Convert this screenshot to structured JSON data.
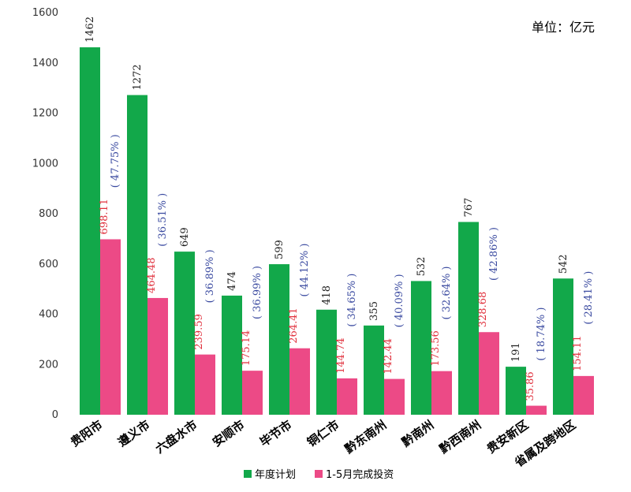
{
  "chart_data": {
    "type": "bar",
    "unit_label": "单位：亿元",
    "categories": [
      "贵阳市",
      "遵义市",
      "六盘水市",
      "安顺市",
      "毕节市",
      "铜仁市",
      "黔东南州",
      "黔南州",
      "黔西南州",
      "贵安新区",
      "省属及跨地区"
    ],
    "series": [
      {
        "name": "年度计划",
        "color": "#12a84a",
        "values": [
          1462,
          1272,
          649,
          474,
          599,
          418,
          355,
          532,
          767,
          191,
          542
        ],
        "labels": [
          "1462",
          "1272",
          "649",
          "474",
          "599",
          "418",
          "355",
          "532",
          "767",
          "191",
          "542"
        ]
      },
      {
        "name": "1-5月完成投资",
        "color": "#ec4a86",
        "values": [
          698.11,
          464.48,
          239.59,
          175.14,
          264.41,
          144.74,
          142.44,
          173.56,
          328.68,
          35.86,
          154.11
        ],
        "labels": [
          "698.11",
          "464.48",
          "239.59",
          "175.14",
          "264.41",
          "144.74",
          "142.44",
          "173.56",
          "328.68",
          "35.86",
          "154.11"
        ]
      }
    ],
    "percent_labels": [
      "( 47.75% )",
      "( 36.51% )",
      "( 36.89% )",
      "( 36.99% )",
      "( 44.12% )",
      "( 34.65% )",
      "( 40.09% )",
      "( 32.64% )",
      "( 42.86% )",
      "( 18.74% )",
      "( 28.41% )"
    ],
    "y_ticks": [
      "0",
      "200",
      "400",
      "600",
      "800",
      "1000",
      "1200",
      "1400",
      "1600"
    ],
    "ylim": [
      0,
      1600
    ],
    "grid": false,
    "legend_position": "bottom"
  }
}
